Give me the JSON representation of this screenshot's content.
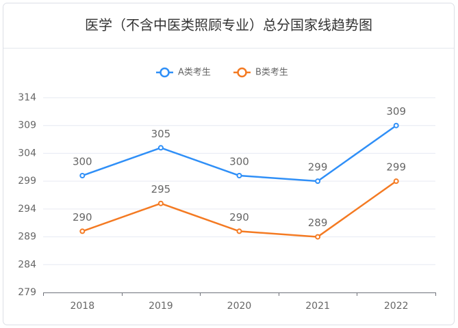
{
  "chart_data": {
    "type": "line",
    "title": "医学（不含中医类照顾专业）总分国家线趋势图",
    "categories": [
      "2018",
      "2019",
      "2020",
      "2021",
      "2022"
    ],
    "series": [
      {
        "name": "A类考生",
        "color": "#2f8ff7",
        "values": [
          300,
          305,
          300,
          299,
          309
        ]
      },
      {
        "name": "B类考生",
        "color": "#f47a22",
        "values": [
          290,
          295,
          290,
          289,
          299
        ]
      }
    ],
    "ylim": [
      279,
      314
    ],
    "yticks": [
      279,
      284,
      289,
      294,
      299,
      304,
      309,
      314
    ],
    "grid": true
  }
}
